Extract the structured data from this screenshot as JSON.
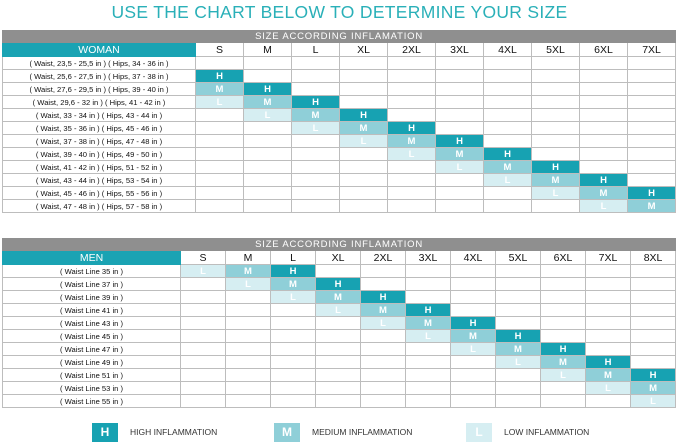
{
  "title": "USE THE CHART BELOW TO DETERMINE YOUR SIZE",
  "woman": {
    "banner": "SIZE ACCORDING INFLAMATION",
    "corner": "WOMAN",
    "sizes": [
      "S",
      "M",
      "L",
      "XL",
      "2XL",
      "3XL",
      "4XL",
      "5XL",
      "6XL",
      "7XL"
    ],
    "rows": [
      {
        "label": "( Waist, 23,5 - 25,5 in ) ( Hips, 34 - 36 in )",
        "cells": [
          "",
          "",
          "",
          "",
          "",
          "",
          "",
          "",
          "",
          ""
        ]
      },
      {
        "label": "( Waist, 25,6 - 27,5 in ) ( Hips, 37 - 38 in )",
        "cells": [
          "H",
          "",
          "",
          "",
          "",
          "",
          "",
          "",
          "",
          ""
        ]
      },
      {
        "label": "( Waist, 27,6 - 29,5 in ) ( Hips, 39 - 40 in )",
        "cells": [
          "M",
          "H",
          "",
          "",
          "",
          "",
          "",
          "",
          "",
          ""
        ]
      },
      {
        "label": "( Waist, 29,6 - 32 in ) ( Hips, 41 - 42 in )",
        "cells": [
          "L",
          "M",
          "H",
          "",
          "",
          "",
          "",
          "",
          "",
          ""
        ]
      },
      {
        "label": "( Waist, 33 - 34 in ) ( Hips, 43 - 44 in )",
        "cells": [
          "",
          "L",
          "M",
          "H",
          "",
          "",
          "",
          "",
          "",
          ""
        ]
      },
      {
        "label": "( Waist, 35 - 36 in ) ( Hips, 45 - 46 in )",
        "cells": [
          "",
          "",
          "L",
          "M",
          "H",
          "",
          "",
          "",
          "",
          ""
        ]
      },
      {
        "label": "( Waist, 37 - 38 in ) ( Hips, 47 - 48 in )",
        "cells": [
          "",
          "",
          "",
          "L",
          "M",
          "H",
          "",
          "",
          "",
          ""
        ]
      },
      {
        "label": "( Waist, 39 - 40 in ) ( Hips, 49 - 50 in )",
        "cells": [
          "",
          "",
          "",
          "",
          "L",
          "M",
          "H",
          "",
          "",
          ""
        ]
      },
      {
        "label": "( Waist, 41 - 42 in ) ( Hips, 51 - 52 in )",
        "cells": [
          "",
          "",
          "",
          "",
          "",
          "L",
          "M",
          "H",
          "",
          ""
        ]
      },
      {
        "label": "( Waist, 43 - 44 in ) ( Hips, 53 - 54 in )",
        "cells": [
          "",
          "",
          "",
          "",
          "",
          "",
          "L",
          "M",
          "H",
          ""
        ]
      },
      {
        "label": "( Waist, 45 - 46 in ) ( Hips, 55 - 56 in )",
        "cells": [
          "",
          "",
          "",
          "",
          "",
          "",
          "",
          "L",
          "M",
          "H"
        ]
      },
      {
        "label": "( Waist, 47 - 48 in ) ( Hips, 57 - 58 in )",
        "cells": [
          "",
          "",
          "",
          "",
          "",
          "",
          "",
          "",
          "L",
          "M"
        ]
      }
    ]
  },
  "men": {
    "banner": "SIZE ACCORDING INFLAMATION",
    "corner": "MEN",
    "sizes": [
      "S",
      "M",
      "L",
      "XL",
      "2XL",
      "3XL",
      "4XL",
      "5XL",
      "6XL",
      "7XL",
      "8XL"
    ],
    "rows": [
      {
        "label": "( Waist Line 35 in )",
        "cells": [
          "L",
          "M",
          "H",
          "",
          "",
          "",
          "",
          "",
          "",
          "",
          ""
        ]
      },
      {
        "label": "( Waist Line 37 in )",
        "cells": [
          "",
          "L",
          "M",
          "H",
          "",
          "",
          "",
          "",
          "",
          "",
          ""
        ]
      },
      {
        "label": "( Waist Line 39 in )",
        "cells": [
          "",
          "",
          "L",
          "M",
          "H",
          "",
          "",
          "",
          "",
          "",
          ""
        ]
      },
      {
        "label": "( Waist Line 41 in )",
        "cells": [
          "",
          "",
          "",
          "L",
          "M",
          "H",
          "",
          "",
          "",
          "",
          ""
        ]
      },
      {
        "label": "( Waist Line 43 in )",
        "cells": [
          "",
          "",
          "",
          "",
          "L",
          "M",
          "H",
          "",
          "",
          "",
          ""
        ]
      },
      {
        "label": "( Waist Line 45 in )",
        "cells": [
          "",
          "",
          "",
          "",
          "",
          "L",
          "M",
          "H",
          "",
          "",
          ""
        ]
      },
      {
        "label": "( Waist Line 47 in )",
        "cells": [
          "",
          "",
          "",
          "",
          "",
          "",
          "L",
          "M",
          "H",
          "",
          ""
        ]
      },
      {
        "label": "( Waist Line 49 in )",
        "cells": [
          "",
          "",
          "",
          "",
          "",
          "",
          "",
          "L",
          "M",
          "H",
          ""
        ]
      },
      {
        "label": "( Waist Line 51 in )",
        "cells": [
          "",
          "",
          "",
          "",
          "",
          "",
          "",
          "",
          "L",
          "M",
          "H"
        ]
      },
      {
        "label": "( Waist Line 53 in )",
        "cells": [
          "",
          "",
          "",
          "",
          "",
          "",
          "",
          "",
          "",
          "L",
          "M"
        ]
      },
      {
        "label": "( Waist Line 55 in )",
        "cells": [
          "",
          "",
          "",
          "",
          "",
          "",
          "",
          "",
          "",
          "",
          "L"
        ]
      }
    ]
  },
  "legend": [
    {
      "symbol": "H",
      "label": "HIGH INFLAMMATION",
      "color": "#17a2b2"
    },
    {
      "symbol": "M",
      "label": "MEDIUM INFLAMMATION",
      "color": "#8fcfd8"
    },
    {
      "symbol": "L",
      "label": "LOW INFLAMMATION",
      "color": "#d6eef2"
    }
  ],
  "colors": {
    "title": "#2ab0b8",
    "banner": "#8f8f8f",
    "corner": "#1aa3b3"
  }
}
